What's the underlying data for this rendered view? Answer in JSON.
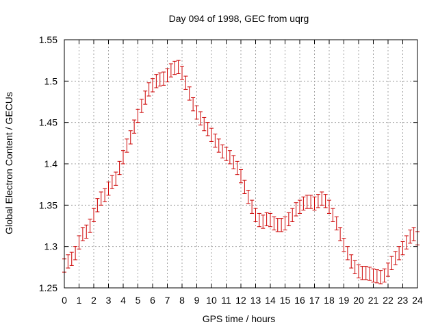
{
  "chart_data": {
    "type": "scatter",
    "title": "Day 094 of 1998, GEC from uqrg",
    "xlabel": "GPS time / hours",
    "ylabel": "Global Electron Content / GECUs",
    "xlim": [
      0,
      24
    ],
    "ylim": [
      1.25,
      1.55
    ],
    "xticks": [
      "0",
      "1",
      "2",
      "3",
      "4",
      "5",
      "6",
      "7",
      "8",
      "9",
      "10",
      "11",
      "12",
      "13",
      "14",
      "15",
      "16",
      "17",
      "18",
      "19",
      "20",
      "21",
      "22",
      "23",
      "24"
    ],
    "yticks": [
      "1.25",
      "1.3",
      "1.35",
      "1.4",
      "1.45",
      "1.5",
      "1.55"
    ],
    "grid": true,
    "marker_color": "#cc0000",
    "series": [
      {
        "name": "GEC",
        "error": 0.008,
        "x": [
          0,
          0.25,
          0.5,
          0.75,
          1,
          1.25,
          1.5,
          1.75,
          2,
          2.25,
          2.5,
          2.75,
          3,
          3.25,
          3.5,
          3.75,
          4,
          4.25,
          4.5,
          4.75,
          5,
          5.25,
          5.5,
          5.75,
          6,
          6.25,
          6.5,
          6.75,
          7,
          7.25,
          7.5,
          7.75,
          8,
          8.25,
          8.5,
          8.75,
          9,
          9.25,
          9.5,
          9.75,
          10,
          10.25,
          10.5,
          10.75,
          11,
          11.25,
          11.5,
          11.75,
          12,
          12.25,
          12.5,
          12.75,
          13,
          13.25,
          13.5,
          13.75,
          14,
          14.25,
          14.5,
          14.75,
          15,
          15.25,
          15.5,
          15.75,
          16,
          16.25,
          16.5,
          16.75,
          17,
          17.25,
          17.5,
          17.75,
          18,
          18.25,
          18.5,
          18.75,
          19,
          19.25,
          19.5,
          19.75,
          20,
          20.25,
          20.5,
          20.75,
          21,
          21.25,
          21.5,
          21.75,
          22,
          22.25,
          22.5,
          22.75,
          23,
          23.25,
          23.5,
          23.75,
          24
        ],
        "y": [
          1.277,
          1.282,
          1.285,
          1.292,
          1.305,
          1.315,
          1.318,
          1.325,
          1.338,
          1.35,
          1.358,
          1.362,
          1.37,
          1.378,
          1.382,
          1.395,
          1.408,
          1.422,
          1.432,
          1.445,
          1.458,
          1.47,
          1.48,
          1.49,
          1.495,
          1.5,
          1.502,
          1.503,
          1.507,
          1.513,
          1.516,
          1.517,
          1.51,
          1.498,
          1.485,
          1.472,
          1.462,
          1.455,
          1.448,
          1.442,
          1.435,
          1.428,
          1.422,
          1.415,
          1.412,
          1.408,
          1.402,
          1.395,
          1.385,
          1.372,
          1.36,
          1.348,
          1.338,
          1.332,
          1.33,
          1.333,
          1.332,
          1.328,
          1.326,
          1.326,
          1.328,
          1.333,
          1.338,
          1.345,
          1.348,
          1.352,
          1.354,
          1.354,
          1.352,
          1.355,
          1.358,
          1.355,
          1.348,
          1.338,
          1.328,
          1.315,
          1.302,
          1.292,
          1.282,
          1.275,
          1.27,
          1.268,
          1.268,
          1.267,
          1.265,
          1.264,
          1.263,
          1.265,
          1.272,
          1.28,
          1.286,
          1.292,
          1.298,
          1.305,
          1.312,
          1.315,
          1.31
        ]
      }
    ]
  }
}
